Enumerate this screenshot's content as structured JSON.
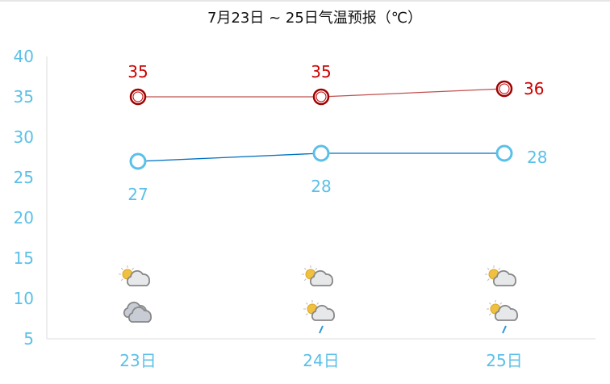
{
  "chart_data": {
    "type": "line",
    "title": "7月23日 ~ 25日气温预报（℃）",
    "categories": [
      "23日",
      "24日",
      "25日"
    ],
    "ylim": [
      5,
      40
    ],
    "yticks": [
      "5",
      "10",
      "15",
      "20",
      "25",
      "30",
      "35",
      "40"
    ],
    "grid": false,
    "series": [
      {
        "values": [
          35,
          35,
          36
        ],
        "color": "#c00000",
        "labels": [
          "35",
          "35",
          "36"
        ]
      },
      {
        "values": [
          27,
          28,
          28
        ],
        "color": "#0070c0",
        "labels": [
          "27",
          "28",
          "28"
        ]
      }
    ],
    "axis_color": "#5bc0e8",
    "weather_icons": [
      [
        "partly-cloudy-icon",
        "cloudy-icon"
      ],
      [
        "partly-cloudy-icon",
        "partly-cloudy-rain-icon"
      ],
      [
        "partly-cloudy-icon",
        "partly-cloudy-rain-icon"
      ]
    ]
  }
}
